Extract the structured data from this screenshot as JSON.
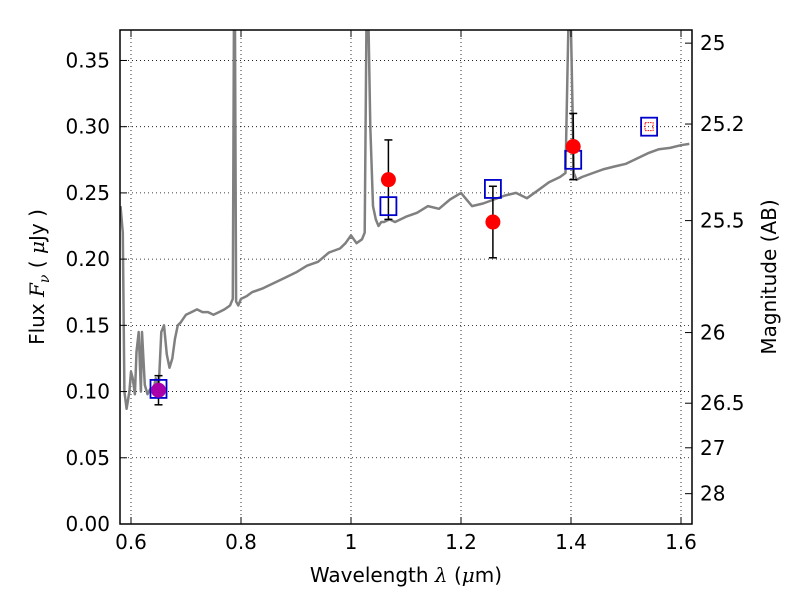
{
  "chart_data": {
    "type": "scatter",
    "xlabel": "Wavelength  λ (μm)",
    "ylabel": "Flux  Fν  ( μJy )",
    "ylabel_parts": {
      "prefix": "Flux  ",
      "symbol": "F",
      "subscript": "ν",
      "mid": "  ( ",
      "unit_symbol": "μ",
      "suffix": "Jy )"
    },
    "xlabel_parts": {
      "prefix": "Wavelength  ",
      "symbol": "λ",
      "mid": " (",
      "unit_symbol": "μ",
      "suffix": "m)"
    },
    "y2label": "Magnitude (AB)",
    "xlim": [
      0.58,
      1.62
    ],
    "ylim": [
      0.0,
      0.373
    ],
    "x_ticks": [
      0.6,
      0.8,
      1.0,
      1.2,
      1.4,
      1.6
    ],
    "x_tick_labels": [
      "0.6",
      "0.8",
      "1",
      "1.2",
      "1.4",
      "1.6"
    ],
    "y_ticks": [
      0.0,
      0.05,
      0.1,
      0.15,
      0.2,
      0.25,
      0.3,
      0.35
    ],
    "y_tick_labels": [
      "0.00",
      "0.05",
      "0.10",
      "0.15",
      "0.20",
      "0.25",
      "0.30",
      "0.35"
    ],
    "y2_ticks": [
      25,
      25.2,
      25.5,
      26,
      26.5,
      27,
      28
    ],
    "y2_tick_labels": [
      "25",
      "25.2",
      "25.5",
      "26",
      "26.5",
      "27",
      "28"
    ],
    "grid": true,
    "colors": {
      "spectrum": "#808080",
      "model": "#0000cc",
      "observed": "#ff0000",
      "highlight": "#aa00aa",
      "errorbar": "#000000"
    },
    "spectrum": {
      "name": "",
      "x": [
        0.581,
        0.585,
        0.588,
        0.592,
        0.597,
        0.6,
        0.603,
        0.607,
        0.61,
        0.614,
        0.618,
        0.62,
        0.625,
        0.63,
        0.635,
        0.64,
        0.645,
        0.65,
        0.655,
        0.66,
        0.665,
        0.67,
        0.675,
        0.68,
        0.685,
        0.69,
        0.7,
        0.71,
        0.72,
        0.73,
        0.74,
        0.75,
        0.76,
        0.77,
        0.78,
        0.785,
        0.787,
        0.789,
        0.791,
        0.795,
        0.8,
        0.81,
        0.82,
        0.84,
        0.86,
        0.88,
        0.9,
        0.92,
        0.94,
        0.96,
        0.98,
        0.99,
        1.0,
        1.01,
        1.02,
        1.025,
        1.028,
        1.03,
        1.032,
        1.035,
        1.04,
        1.045,
        1.05,
        1.055,
        1.06,
        1.07,
        1.08,
        1.1,
        1.12,
        1.14,
        1.16,
        1.18,
        1.2,
        1.22,
        1.24,
        1.26,
        1.28,
        1.3,
        1.32,
        1.34,
        1.36,
        1.38,
        1.39,
        1.395,
        1.4,
        1.405,
        1.41,
        1.42,
        1.44,
        1.46,
        1.48,
        1.5,
        1.52,
        1.54,
        1.56,
        1.58,
        1.6,
        1.615
      ],
      "y": [
        0.24,
        0.22,
        0.1,
        0.087,
        0.1,
        0.115,
        0.11,
        0.098,
        0.13,
        0.145,
        0.1,
        0.145,
        0.105,
        0.098,
        0.102,
        0.1,
        0.11,
        0.1,
        0.145,
        0.15,
        0.128,
        0.118,
        0.125,
        0.14,
        0.15,
        0.152,
        0.158,
        0.16,
        0.162,
        0.16,
        0.16,
        0.158,
        0.16,
        0.162,
        0.165,
        0.17,
        0.373,
        0.373,
        0.168,
        0.165,
        0.17,
        0.172,
        0.175,
        0.178,
        0.182,
        0.186,
        0.19,
        0.195,
        0.198,
        0.205,
        0.208,
        0.212,
        0.218,
        0.212,
        0.215,
        0.22,
        0.373,
        0.373,
        0.373,
        0.3,
        0.24,
        0.23,
        0.225,
        0.228,
        0.228,
        0.23,
        0.228,
        0.232,
        0.235,
        0.24,
        0.238,
        0.245,
        0.25,
        0.24,
        0.242,
        0.245,
        0.248,
        0.25,
        0.246,
        0.252,
        0.258,
        0.262,
        0.265,
        0.373,
        0.373,
        0.265,
        0.26,
        0.262,
        0.265,
        0.268,
        0.27,
        0.272,
        0.276,
        0.28,
        0.283,
        0.284,
        0.286,
        0.287
      ]
    },
    "model_points": [
      {
        "x": 0.65,
        "y": 0.102
      },
      {
        "x": 1.068,
        "y": 0.24
      },
      {
        "x": 1.258,
        "y": 0.253
      },
      {
        "x": 1.404,
        "y": 0.275
      },
      {
        "x": 1.542,
        "y": 0.3
      }
    ],
    "observed_points": [
      {
        "x": 0.65,
        "y": 0.101,
        "err": 0.011,
        "color": "highlight"
      },
      {
        "x": 1.068,
        "y": 0.26,
        "err": 0.03,
        "color": "observed"
      },
      {
        "x": 1.258,
        "y": 0.228,
        "err": 0.027,
        "color": "observed"
      },
      {
        "x": 1.404,
        "y": 0.285,
        "err": 0.025,
        "color": "observed"
      }
    ],
    "upper_limit_marker": {
      "x": 1.542,
      "y": 0.3
    }
  }
}
